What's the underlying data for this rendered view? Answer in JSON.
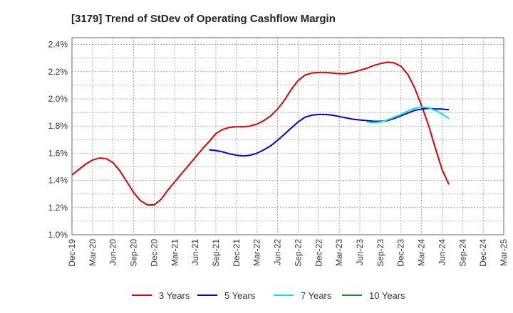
{
  "chart_data": {
    "type": "line",
    "title": "[3179]  Trend of StDev of Operating Cashflow Margin",
    "xlabel": "",
    "ylabel": "",
    "x_ticks": [
      "Dec-19",
      "Mar-20",
      "Jun-20",
      "Sep-20",
      "Dec-20",
      "Mar-21",
      "Jun-21",
      "Sep-21",
      "Dec-21",
      "Mar-22",
      "Jun-22",
      "Sep-22",
      "Dec-22",
      "Mar-23",
      "Jun-23",
      "Sep-23",
      "Dec-23",
      "Mar-24",
      "Jun-24",
      "Sep-24",
      "Dec-24",
      "Mar-25"
    ],
    "y_ticks": [
      "1.0%",
      "1.2%",
      "1.4%",
      "1.6%",
      "1.8%",
      "2.0%",
      "2.2%",
      "2.4%"
    ],
    "ylim": [
      1.0,
      2.45
    ],
    "grid": true,
    "legend_position": "bottom",
    "series": [
      {
        "name": "3 Years",
        "color": "#dd0000",
        "values": [
          1.44,
          1.48,
          1.52,
          1.55,
          1.565,
          1.56,
          1.53,
          1.47,
          1.39,
          1.31,
          1.25,
          1.22,
          1.22,
          1.26,
          1.33,
          1.39,
          1.45,
          1.51,
          1.57,
          1.63,
          1.685,
          1.745,
          1.775,
          1.79,
          1.795,
          1.795,
          1.8,
          1.815,
          1.84,
          1.875,
          1.925,
          1.99,
          2.07,
          2.135,
          2.175,
          2.19,
          2.195,
          2.195,
          2.19,
          2.185,
          2.185,
          2.195,
          2.21,
          2.225,
          2.245,
          2.26,
          2.27,
          2.265,
          2.24,
          2.18,
          2.08,
          1.95,
          1.81,
          1.64,
          1.48,
          1.37
        ]
      },
      {
        "name": "5 Years",
        "color": "#0000cc",
        "values": [
          null,
          null,
          null,
          null,
          null,
          null,
          null,
          null,
          null,
          null,
          null,
          null,
          null,
          null,
          null,
          null,
          null,
          null,
          null,
          null,
          1.625,
          1.62,
          1.61,
          1.595,
          1.585,
          1.58,
          1.585,
          1.6,
          1.625,
          1.655,
          1.695,
          1.74,
          1.785,
          1.83,
          1.865,
          1.88,
          1.885,
          1.885,
          1.88,
          1.87,
          1.86,
          1.85,
          1.845,
          1.84,
          1.835,
          1.835,
          1.84,
          1.855,
          1.875,
          1.895,
          1.915,
          1.925,
          1.93,
          1.925,
          1.925,
          1.92
        ]
      },
      {
        "name": "7 Years",
        "color": "#00e5ee",
        "values": [
          null,
          null,
          null,
          null,
          null,
          null,
          null,
          null,
          null,
          null,
          null,
          null,
          null,
          null,
          null,
          null,
          null,
          null,
          null,
          null,
          null,
          null,
          null,
          null,
          null,
          null,
          null,
          null,
          null,
          null,
          null,
          null,
          null,
          null,
          null,
          null,
          null,
          null,
          null,
          null,
          null,
          null,
          null,
          1.83,
          1.825,
          1.83,
          1.845,
          1.865,
          1.885,
          1.91,
          1.93,
          1.94,
          1.935,
          1.915,
          1.89,
          1.855
        ]
      },
      {
        "name": "10 Years",
        "color": "#228b22",
        "values": []
      }
    ]
  }
}
